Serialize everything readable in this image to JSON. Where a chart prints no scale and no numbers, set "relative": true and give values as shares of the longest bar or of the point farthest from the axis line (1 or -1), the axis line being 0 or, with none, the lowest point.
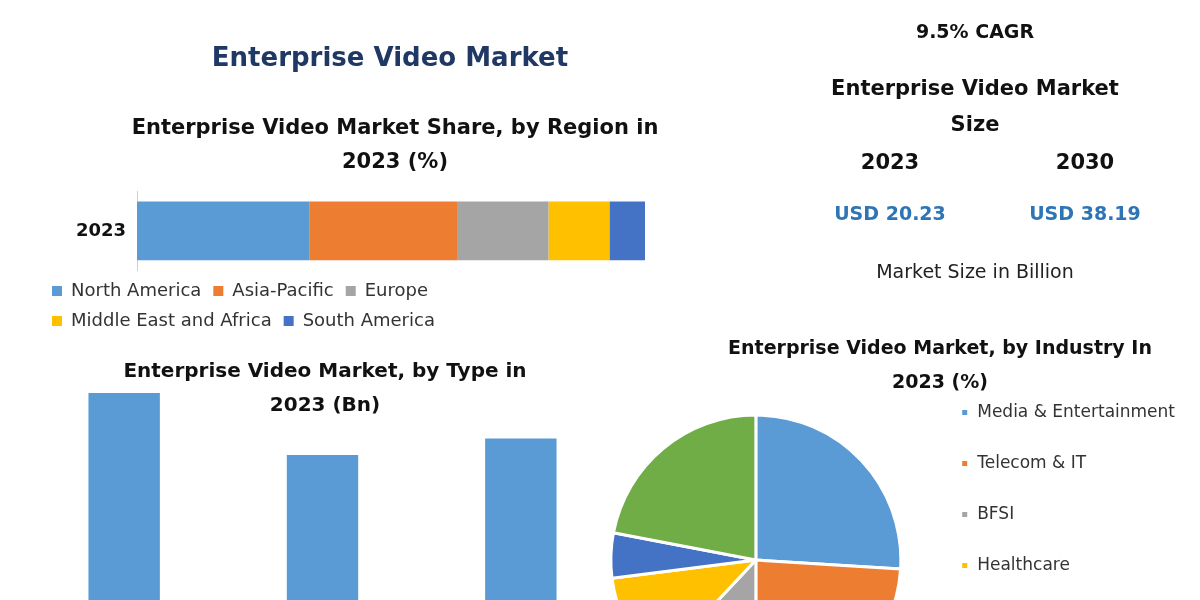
{
  "chart_data": [
    {
      "type": "bar",
      "title": "Enterprise Video Market",
      "subtitle": "Enterprise Video Market Share, by Region in 2023 (%)",
      "categories": [
        "2023"
      ],
      "orientation": "horizontal",
      "stacked": true,
      "relative": true,
      "legend": "bottom",
      "series": [
        {
          "name": "North America",
          "color": "#5b9bd5",
          "values": [
            0.34
          ]
        },
        {
          "name": "Asia-Pacific",
          "color": "#ed7d31",
          "values": [
            0.29
          ]
        },
        {
          "name": "Europe",
          "color": "#a5a5a5",
          "values": [
            0.18
          ]
        },
        {
          "name": "Middle East and Africa",
          "color": "#ffc000",
          "values": [
            0.12
          ]
        },
        {
          "name": "South America",
          "color": "#4472c4",
          "values": [
            0.07
          ]
        }
      ]
    },
    {
      "type": "other",
      "title": "Enterprise Video Market Size",
      "annotations": [
        "9.5% CAGR",
        "2023",
        "2030",
        "USD 20.23",
        "USD 38.19",
        "Market Size in Billion"
      ]
    },
    {
      "type": "bar",
      "title": "Enterprise Video Market, by Type in 2023 (Bn)",
      "categories": [
        null,
        null,
        null
      ],
      "values": [
        1,
        0.7,
        0.78
      ],
      "color": "#5b9bd5",
      "relative": true
    },
    {
      "type": "pie",
      "title": "Enterprise Video Market, by Industry In 2023 (%)",
      "legend": "right",
      "categories": [
        "Media & Entertainment",
        "Telecom & IT",
        "BFSI",
        "Healthcare",
        null,
        null
      ],
      "values": [
        26,
        24,
        12,
        11,
        5,
        22
      ],
      "colors": [
        "#5b9bd5",
        "#ed7d31",
        "#a5a5a5",
        "#ffc000",
        "#4472c4",
        "#70ad47"
      ]
    }
  ]
}
